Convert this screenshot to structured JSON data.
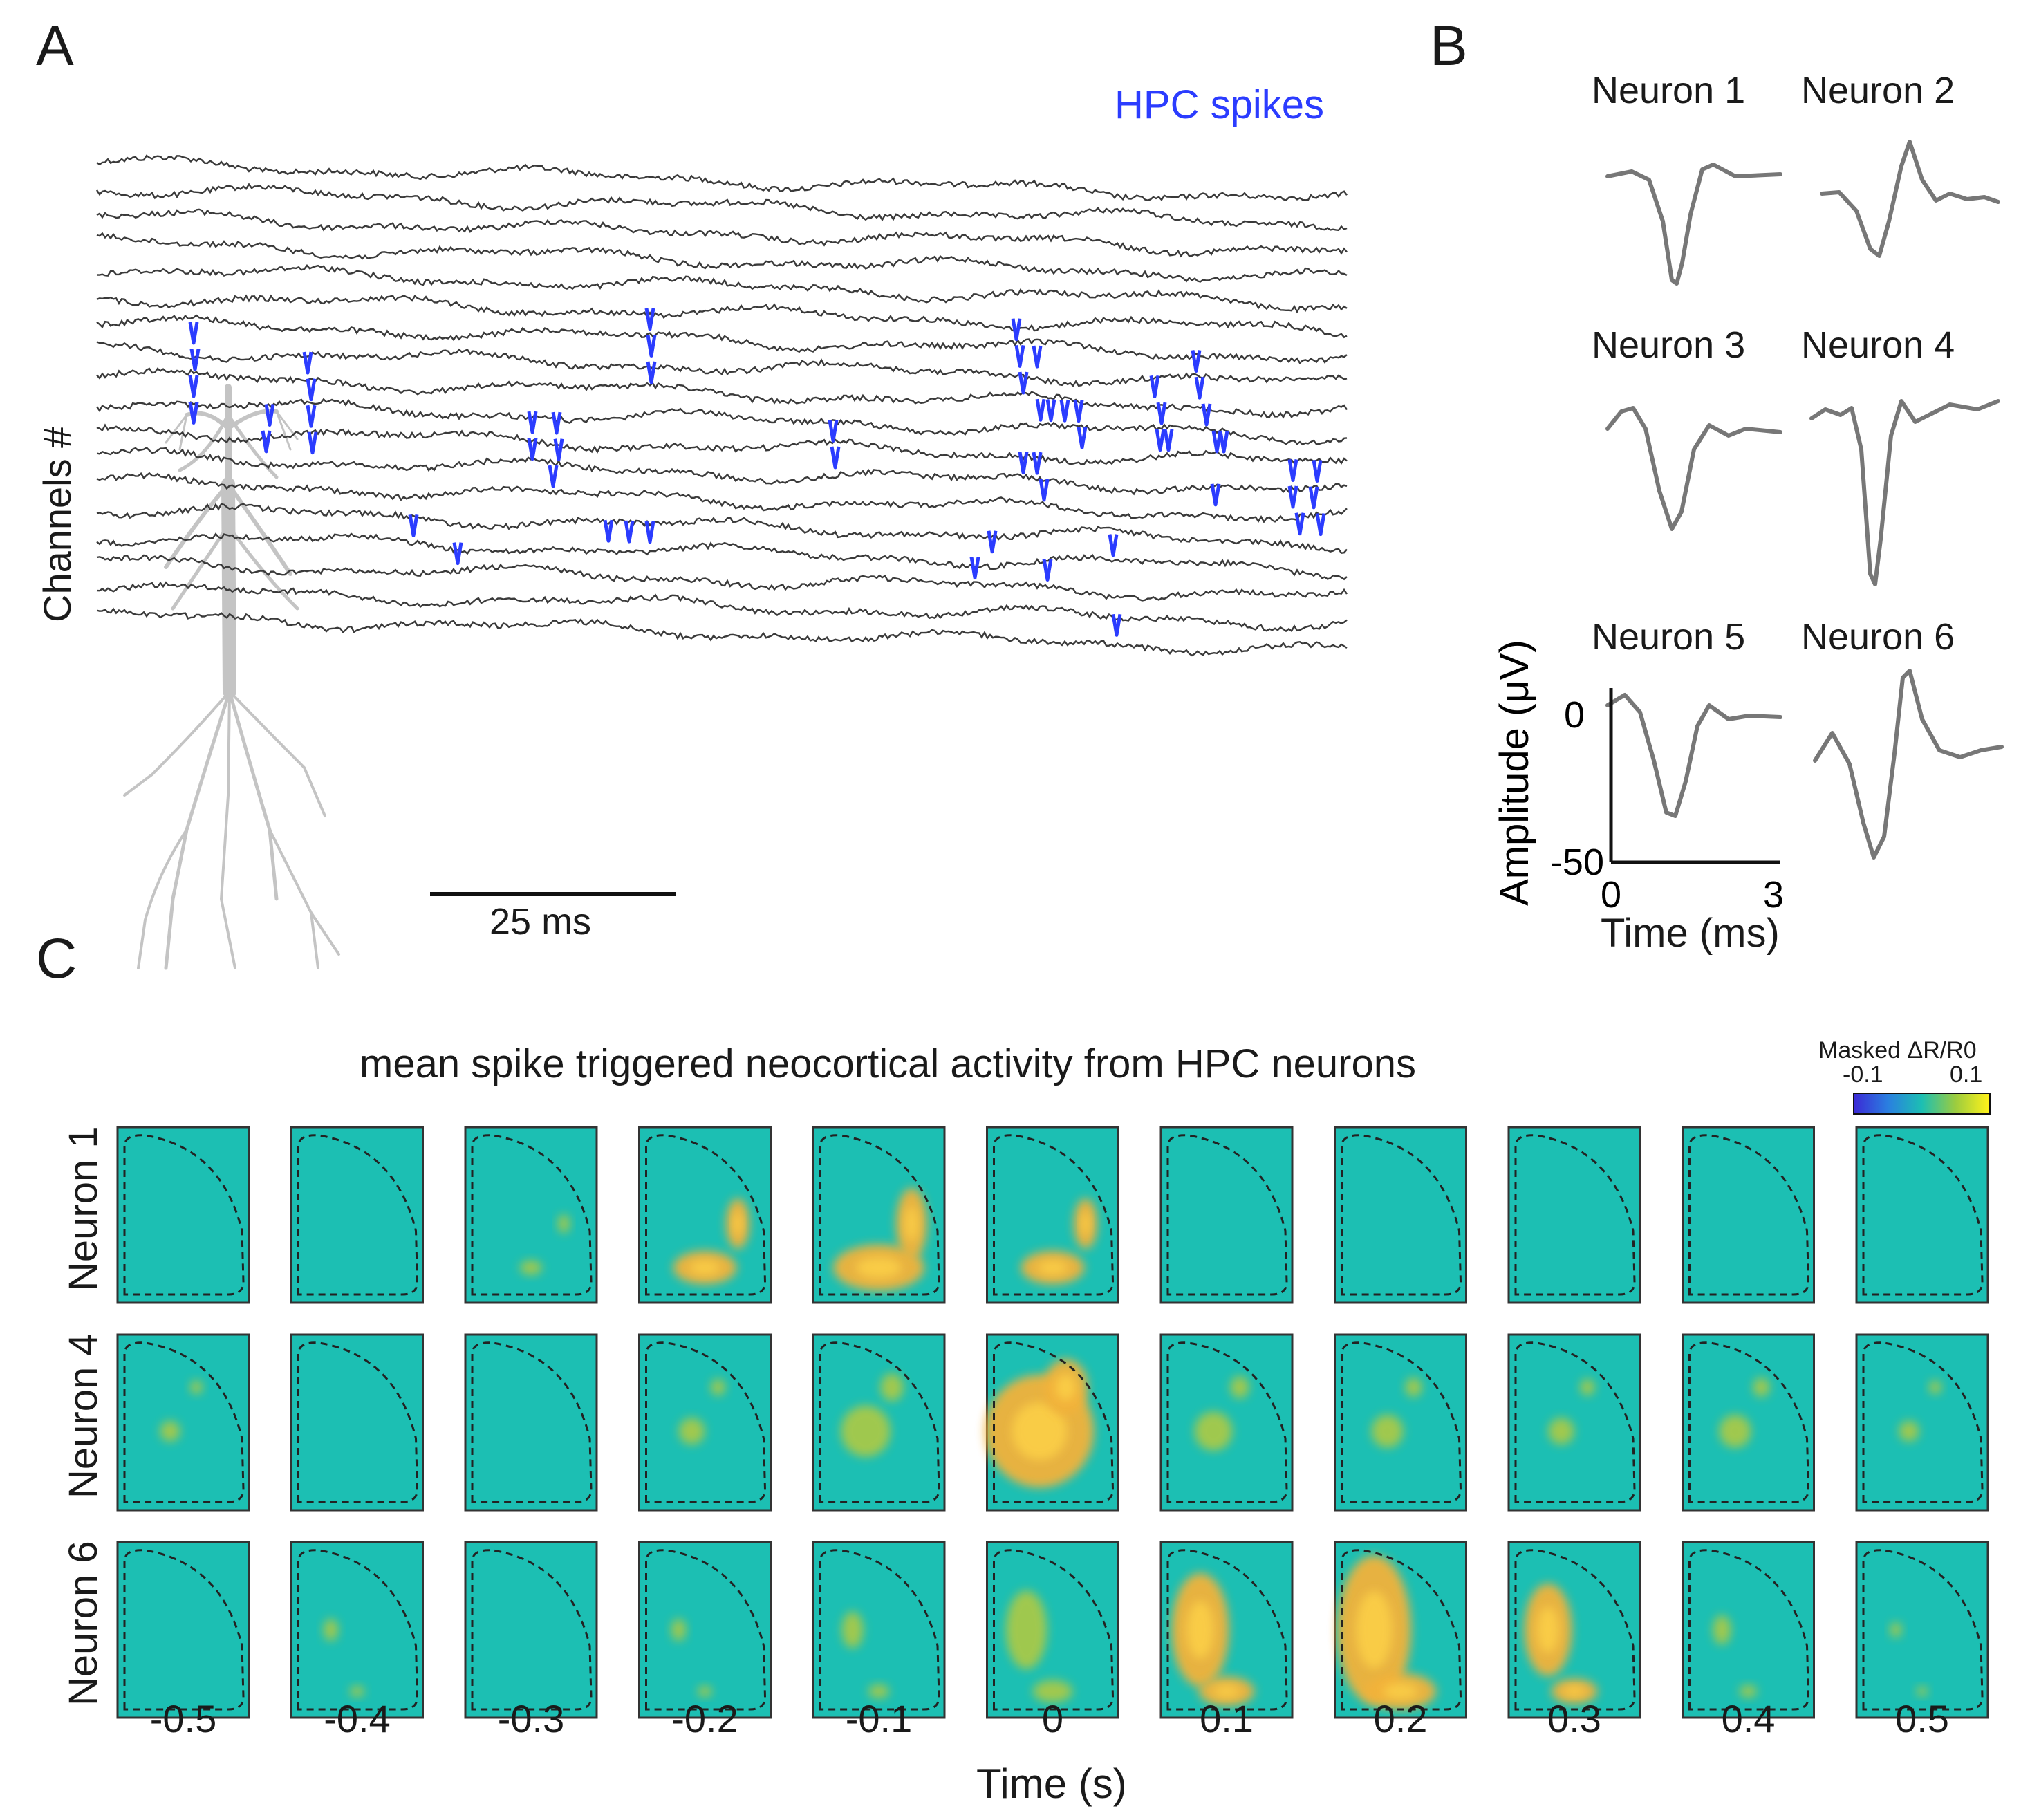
{
  "figure": {
    "panels": {
      "a": "A",
      "b": "B",
      "c": "C"
    },
    "spike_color": "#2b3cff",
    "trace_color": "#3a3a3a",
    "waveform_color": "#777777",
    "activation_color": "#f4b63a",
    "background_color": "#1cbfb3"
  },
  "panel_a": {
    "ylabel": "Channels #",
    "legend": "HPC spikes",
    "scalebar_label": "25 ms",
    "channel_count": 18
  },
  "panel_b": {
    "neuron_titles": [
      "Neuron 1",
      "Neuron 2",
      "Neuron 3",
      "Neuron 4",
      "Neuron 5",
      "Neuron 6"
    ],
    "ylabel": "Amplitude (μV)",
    "xlabel": "Time (ms)",
    "y_ticks": [
      "0",
      "-50"
    ],
    "x_ticks": [
      "0",
      "3"
    ]
  },
  "panel_c": {
    "title": "mean spike triggered neocortical activity from HPC neurons",
    "colorbar_title": "Masked ΔR/R0",
    "colorbar_min": "-0.1",
    "colorbar_max": "0.1",
    "row_labels": [
      "Neuron 1",
      "Neuron 4",
      "Neuron 6"
    ],
    "time_labels": [
      "-0.5",
      "-0.4",
      "-0.3",
      "-0.2",
      "-0.1",
      "0",
      "0.1",
      "0.2",
      "0.3",
      "0.4",
      "0.5"
    ],
    "xlabel": "Time (s)"
  },
  "chart_data": {
    "type": "heatmap",
    "title": "mean spike triggered neocortical activity from HPC neurons",
    "xlabel": "Time (s)",
    "x": [
      -0.5,
      -0.4,
      -0.3,
      -0.2,
      -0.1,
      0,
      0.1,
      0.2,
      0.3,
      0.4,
      0.5
    ],
    "rows": [
      "Neuron 1",
      "Neuron 4",
      "Neuron 6"
    ],
    "colorbar": {
      "label": "Masked ΔR/R0",
      "min": -0.1,
      "max": 0.1
    },
    "activation_level": [
      [
        0,
        0,
        0.15,
        0.6,
        0.9,
        0.6,
        0,
        0,
        0,
        0,
        0
      ],
      [
        0.1,
        0,
        0,
        0.15,
        0.35,
        0.85,
        0.25,
        0.2,
        0.15,
        0.2,
        0.1
      ],
      [
        0,
        0.1,
        0,
        0.1,
        0.2,
        0.5,
        0.75,
        1.0,
        0.6,
        0.15,
        0.05
      ]
    ]
  }
}
